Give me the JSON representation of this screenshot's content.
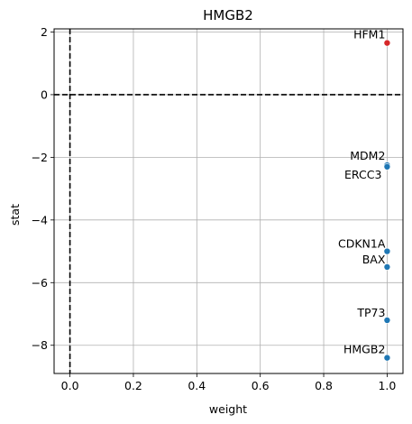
{
  "chart_data": {
    "type": "scatter",
    "title": "HMGB2",
    "xlabel": "weight",
    "ylabel": "stat",
    "xlim": [
      -0.05,
      1.05
    ],
    "ylim": [
      -8.9,
      2.1
    ],
    "xticks": [
      0.0,
      0.2,
      0.4,
      0.6,
      0.8,
      1.0
    ],
    "xtick_labels": [
      "0.0",
      "0.2",
      "0.4",
      "0.6",
      "0.8",
      "1.0"
    ],
    "yticks": [
      2,
      0,
      -2,
      -4,
      -6,
      -8
    ],
    "ytick_labels": [
      "2",
      "0",
      "−2",
      "−4",
      "−6",
      "−8"
    ],
    "grid": true,
    "reference_lines": [
      {
        "orientation": "horizontal",
        "value": 0,
        "style": "dashed",
        "color": "#000000"
      },
      {
        "orientation": "vertical",
        "value": 0,
        "style": "dashed",
        "color": "#000000"
      }
    ],
    "points": [
      {
        "label": "HFM1",
        "x": 1.0,
        "y": 1.65,
        "color": "#d62728"
      },
      {
        "label": "MDM2",
        "x": 1.0,
        "y": -2.25,
        "color": "#1f77b4"
      },
      {
        "label": "ERCC3",
        "x": 1.0,
        "y": -2.3,
        "color": "#1f77b4"
      },
      {
        "label": "CDKN1A",
        "x": 1.0,
        "y": -5.0,
        "color": "#1f77b4"
      },
      {
        "label": "BAX",
        "x": 1.0,
        "y": -5.5,
        "color": "#1f77b4"
      },
      {
        "label": "TP73",
        "x": 1.0,
        "y": -7.2,
        "color": "#1f77b4"
      },
      {
        "label": "HMGB2",
        "x": 1.0,
        "y": -8.4,
        "color": "#1f77b4"
      }
    ]
  }
}
